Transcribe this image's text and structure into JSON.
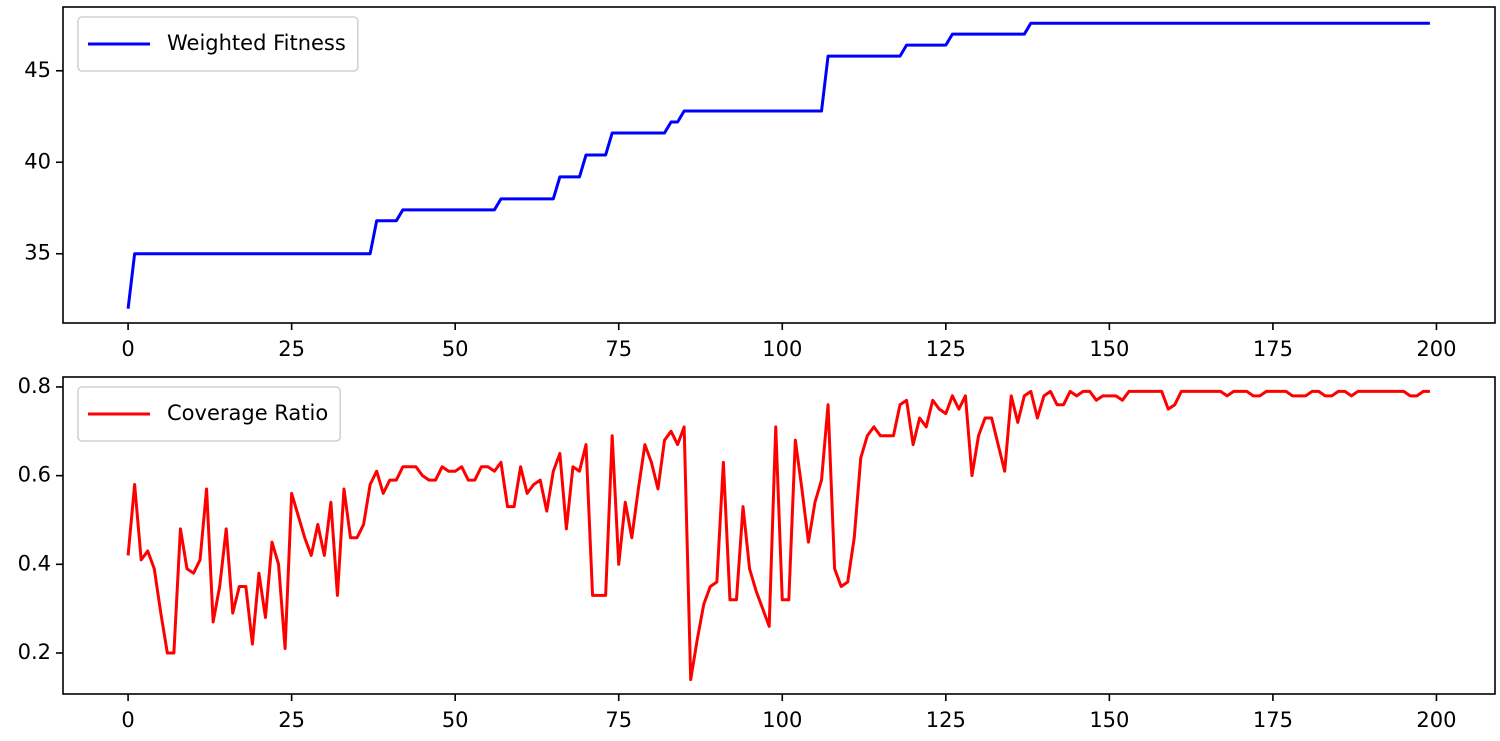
{
  "chart_data": [
    {
      "type": "line",
      "x": [
        0,
        1,
        2,
        3,
        4,
        5,
        6,
        7,
        8,
        9,
        10,
        11,
        12,
        13,
        14,
        15,
        16,
        17,
        18,
        19,
        20,
        21,
        22,
        23,
        24,
        25,
        26,
        27,
        28,
        29,
        30,
        31,
        32,
        33,
        34,
        35,
        36,
        37,
        38,
        39,
        40,
        41,
        42,
        43,
        44,
        45,
        46,
        47,
        48,
        49,
        50,
        51,
        52,
        53,
        54,
        55,
        56,
        57,
        58,
        59,
        60,
        61,
        62,
        63,
        64,
        65,
        66,
        67,
        68,
        69,
        70,
        71,
        72,
        73,
        74,
        75,
        76,
        77,
        78,
        79,
        80,
        81,
        82,
        83,
        84,
        85,
        86,
        87,
        88,
        89,
        90,
        91,
        92,
        93,
        94,
        95,
        96,
        97,
        98,
        99,
        100,
        101,
        102,
        103,
        104,
        105,
        106,
        107,
        108,
        109,
        110,
        111,
        112,
        113,
        114,
        115,
        116,
        117,
        118,
        119,
        120,
        121,
        122,
        123,
        124,
        125,
        126,
        127,
        128,
        129,
        130,
        131,
        132,
        133,
        134,
        135,
        136,
        137,
        138,
        139,
        140,
        141,
        142,
        143,
        144,
        145,
        146,
        147,
        148,
        149,
        150,
        151,
        152,
        153,
        154,
        155,
        156,
        157,
        158,
        159,
        160,
        161,
        162,
        163,
        164,
        165,
        166,
        167,
        168,
        169,
        170,
        171,
        172,
        173,
        174,
        175,
        176,
        177,
        178,
        179,
        180,
        181,
        182,
        183,
        184,
        185,
        186,
        187,
        188,
        189,
        190,
        191,
        192,
        193,
        194,
        195,
        196,
        197,
        198,
        199
      ],
      "series": [
        {
          "name": "Weighted Fitness",
          "color": "#0000ff",
          "values": [
            32,
            35,
            35,
            35,
            35,
            35,
            35,
            35,
            35,
            35,
            35,
            35,
            35,
            35,
            35,
            35,
            35,
            35,
            35,
            35,
            35,
            35,
            35,
            35,
            35,
            35,
            35,
            35,
            35,
            35,
            35,
            35,
            35,
            35,
            35,
            35,
            35,
            35,
            36.8,
            36.8,
            36.8,
            36.8,
            37.4,
            37.4,
            37.4,
            37.4,
            37.4,
            37.4,
            37.4,
            37.4,
            37.4,
            37.4,
            37.4,
            37.4,
            37.4,
            37.4,
            37.4,
            38,
            38,
            38,
            38,
            38,
            38,
            38,
            38,
            38,
            39.2,
            39.2,
            39.2,
            39.2,
            40.4,
            40.4,
            40.4,
            40.4,
            41.6,
            41.6,
            41.6,
            41.6,
            41.6,
            41.6,
            41.6,
            41.6,
            41.6,
            42.2,
            42.2,
            42.8,
            42.8,
            42.8,
            42.8,
            42.8,
            42.8,
            42.8,
            42.8,
            42.8,
            42.8,
            42.8,
            42.8,
            42.8,
            42.8,
            42.8,
            42.8,
            42.8,
            42.8,
            42.8,
            42.8,
            42.8,
            42.8,
            45.8,
            45.8,
            45.8,
            45.8,
            45.8,
            45.8,
            45.8,
            45.8,
            45.8,
            45.8,
            45.8,
            45.8,
            46.4,
            46.4,
            46.4,
            46.4,
            46.4,
            46.4,
            46.4,
            47,
            47,
            47,
            47,
            47,
            47,
            47,
            47,
            47,
            47,
            47,
            47,
            47.6,
            47.6,
            47.6,
            47.6,
            47.6,
            47.6,
            47.6,
            47.6,
            47.6,
            47.6,
            47.6,
            47.6,
            47.6,
            47.6,
            47.6,
            47.6,
            47.6,
            47.6,
            47.6,
            47.6,
            47.6,
            47.6,
            47.6,
            47.6,
            47.6,
            47.6,
            47.6,
            47.6,
            47.6,
            47.6,
            47.6,
            47.6,
            47.6,
            47.6,
            47.6,
            47.6,
            47.6,
            47.6,
            47.6,
            47.6,
            47.6,
            47.6,
            47.6,
            47.6,
            47.6,
            47.6,
            47.6,
            47.6,
            47.6,
            47.6,
            47.6,
            47.6,
            47.6,
            47.6,
            47.6,
            47.6,
            47.6,
            47.6,
            47.6,
            47.6,
            47.6,
            47.6
          ]
        }
      ],
      "xlim": [
        -9.95,
        208.95
      ],
      "xticks": [
        0,
        25,
        50,
        75,
        100,
        125,
        150,
        175,
        200
      ],
      "ylim": [
        31.215,
        48.485
      ],
      "yticks": [
        35,
        40,
        45
      ],
      "legend": "upper left"
    },
    {
      "type": "line",
      "x": [
        0,
        1,
        2,
        3,
        4,
        5,
        6,
        7,
        8,
        9,
        10,
        11,
        12,
        13,
        14,
        15,
        16,
        17,
        18,
        19,
        20,
        21,
        22,
        23,
        24,
        25,
        26,
        27,
        28,
        29,
        30,
        31,
        32,
        33,
        34,
        35,
        36,
        37,
        38,
        39,
        40,
        41,
        42,
        43,
        44,
        45,
        46,
        47,
        48,
        49,
        50,
        51,
        52,
        53,
        54,
        55,
        56,
        57,
        58,
        59,
        60,
        61,
        62,
        63,
        64,
        65,
        66,
        67,
        68,
        69,
        70,
        71,
        72,
        73,
        74,
        75,
        76,
        77,
        78,
        79,
        80,
        81,
        82,
        83,
        84,
        85,
        86,
        87,
        88,
        89,
        90,
        91,
        92,
        93,
        94,
        95,
        96,
        97,
        98,
        99,
        100,
        101,
        102,
        103,
        104,
        105,
        106,
        107,
        108,
        109,
        110,
        111,
        112,
        113,
        114,
        115,
        116,
        117,
        118,
        119,
        120,
        121,
        122,
        123,
        124,
        125,
        126,
        127,
        128,
        129,
        130,
        131,
        132,
        133,
        134,
        135,
        136,
        137,
        138,
        139,
        140,
        141,
        142,
        143,
        144,
        145,
        146,
        147,
        148,
        149,
        150,
        151,
        152,
        153,
        154,
        155,
        156,
        157,
        158,
        159,
        160,
        161,
        162,
        163,
        164,
        165,
        166,
        167,
        168,
        169,
        170,
        171,
        172,
        173,
        174,
        175,
        176,
        177,
        178,
        179,
        180,
        181,
        182,
        183,
        184,
        185,
        186,
        187,
        188,
        189,
        190,
        191,
        192,
        193,
        194,
        195,
        196,
        197,
        198,
        199
      ],
      "series": [
        {
          "name": "Coverage Ratio",
          "color": "#ff0000",
          "values": [
            0.42,
            0.58,
            0.41,
            0.43,
            0.39,
            0.29,
            0.2,
            0.2,
            0.48,
            0.39,
            0.38,
            0.41,
            0.57,
            0.27,
            0.35,
            0.48,
            0.29,
            0.35,
            0.35,
            0.22,
            0.38,
            0.28,
            0.45,
            0.4,
            0.21,
            0.56,
            0.51,
            0.46,
            0.42,
            0.49,
            0.42,
            0.54,
            0.33,
            0.57,
            0.46,
            0.46,
            0.49,
            0.58,
            0.61,
            0.56,
            0.59,
            0.59,
            0.62,
            0.62,
            0.62,
            0.6,
            0.59,
            0.59,
            0.62,
            0.61,
            0.61,
            0.62,
            0.59,
            0.59,
            0.62,
            0.62,
            0.61,
            0.63,
            0.53,
            0.53,
            0.62,
            0.56,
            0.58,
            0.59,
            0.52,
            0.61,
            0.65,
            0.48,
            0.62,
            0.61,
            0.67,
            0.33,
            0.33,
            0.33,
            0.69,
            0.4,
            0.54,
            0.46,
            0.57,
            0.67,
            0.63,
            0.57,
            0.68,
            0.7,
            0.67,
            0.71,
            0.14,
            0.23,
            0.31,
            0.35,
            0.36,
            0.63,
            0.32,
            0.32,
            0.53,
            0.39,
            0.34,
            0.3,
            0.26,
            0.71,
            0.32,
            0.32,
            0.68,
            0.57,
            0.45,
            0.54,
            0.59,
            0.76,
            0.39,
            0.35,
            0.36,
            0.46,
            0.64,
            0.69,
            0.71,
            0.69,
            0.69,
            0.69,
            0.76,
            0.77,
            0.67,
            0.73,
            0.71,
            0.77,
            0.75,
            0.74,
            0.78,
            0.75,
            0.78,
            0.6,
            0.69,
            0.73,
            0.73,
            0.67,
            0.61,
            0.78,
            0.72,
            0.78,
            0.79,
            0.73,
            0.78,
            0.79,
            0.76,
            0.76,
            0.79,
            0.78,
            0.79,
            0.79,
            0.77,
            0.78,
            0.78,
            0.78,
            0.77,
            0.79,
            0.79,
            0.79,
            0.79,
            0.79,
            0.79,
            0.75,
            0.76,
            0.79,
            0.79,
            0.79,
            0.79,
            0.79,
            0.79,
            0.79,
            0.78,
            0.79,
            0.79,
            0.79,
            0.78,
            0.78,
            0.79,
            0.79,
            0.79,
            0.79,
            0.78,
            0.78,
            0.78,
            0.79,
            0.79,
            0.78,
            0.78,
            0.79,
            0.79,
            0.78,
            0.79,
            0.79,
            0.79,
            0.79,
            0.79,
            0.79,
            0.79,
            0.79,
            0.78,
            0.78,
            0.79,
            0.79
          ]
        }
      ],
      "xlim": [
        -9.95,
        208.95
      ],
      "xticks": [
        0,
        25,
        50,
        75,
        100,
        125,
        150,
        175,
        200
      ],
      "ylim": [
        0.1075,
        0.8225
      ],
      "yticks": [
        0.2,
        0.4,
        0.6,
        0.8
      ],
      "legend": "upper left"
    }
  ]
}
